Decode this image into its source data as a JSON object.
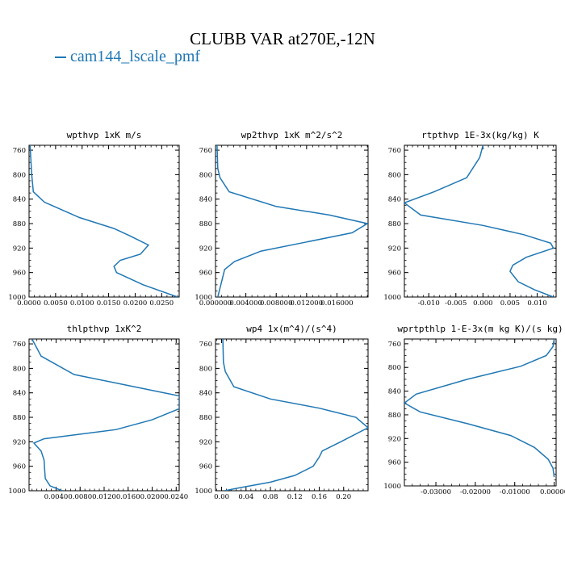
{
  "title": "CLUBB VAR at270E,-12N",
  "legend": {
    "label": "cam144_lscale_pmf"
  },
  "colors": {
    "series": "#1f77b4",
    "axes": "#000000"
  },
  "chart_data": [
    {
      "type": "line",
      "title": "wpthvp  1xK m/s",
      "xlim": [
        0,
        0.0283
      ],
      "ylim": [
        1000,
        752
      ],
      "xticks": [
        0,
        0.005,
        0.01,
        0.015,
        0.02,
        0.025
      ],
      "xtick_labels": [
        "0.0000",
        "0.0050",
        "0.0100",
        "0.0150",
        "0.0200",
        "0.0250"
      ],
      "yticks": [
        760,
        800,
        840,
        880,
        920,
        960,
        1000
      ],
      "ytick_labels": [
        "760",
        "800",
        "840",
        "880",
        "920",
        "960",
        "1000"
      ],
      "series": [
        {
          "x": [
            0.0002,
            0.0003,
            0.0005,
            0.0008,
            0.0029,
            0.0095,
            0.016,
            0.019,
            0.0225,
            0.021,
            0.0172,
            0.016,
            0.0165,
            0.0215,
            0.028
          ],
          "y": [
            752,
            770,
            800,
            828,
            845,
            870,
            888,
            900,
            915,
            930,
            940,
            950,
            960,
            980,
            1000
          ]
        }
      ]
    },
    {
      "type": "line",
      "title": "wp2thvp  1xK m^2/s^2",
      "xlim": [
        0,
        0.0201
      ],
      "ylim": [
        1000,
        752
      ],
      "xticks": [
        0,
        0.004,
        0.008,
        0.012,
        0.016
      ],
      "xtick_labels": [
        "0.000000",
        "0.004000",
        "0.008000",
        "0.012000",
        "0.016000"
      ],
      "yticks": [
        760,
        800,
        840,
        880,
        920,
        960,
        1000
      ],
      "ytick_labels": [
        "760",
        "800",
        "840",
        "880",
        "920",
        "960",
        "1000"
      ],
      "series": [
        {
          "x": [
            0.0002,
            0.0003,
            0.0006,
            0.0018,
            0.008,
            0.015,
            0.02,
            0.018,
            0.012,
            0.006,
            0.0025,
            0.0012,
            0.0007,
            0.0003
          ],
          "y": [
            752,
            790,
            805,
            828,
            852,
            866,
            880,
            895,
            910,
            925,
            942,
            955,
            980,
            1000
          ]
        }
      ]
    },
    {
      "type": "line",
      "title": "rtpthvp  1E-3x(kg/kg) K",
      "xlim": [
        -0.0145,
        0.0135
      ],
      "ylim": [
        1000,
        752
      ],
      "xticks": [
        -0.01,
        -0.005,
        0,
        0.005,
        0.01
      ],
      "xtick_labels": [
        "-0.010",
        "-0.005",
        "0.000",
        "0.005",
        "0.010"
      ],
      "yticks": [
        760,
        800,
        840,
        880,
        920,
        960,
        1000
      ],
      "ytick_labels": [
        "760",
        "800",
        "840",
        "880",
        "920",
        "960",
        "1000"
      ],
      "series": [
        {
          "x": [
            0.0,
            -0.0006,
            -0.003,
            -0.009,
            -0.0145,
            -0.0115,
            0.0,
            0.0075,
            0.0125,
            0.013,
            0.008,
            0.0055,
            0.005,
            0.0065,
            0.0095,
            0.013
          ],
          "y": [
            752,
            772,
            805,
            828,
            846,
            866,
            883,
            898,
            912,
            920,
            935,
            948,
            958,
            975,
            988,
            1000
          ]
        }
      ]
    },
    {
      "type": "line",
      "title": "thlpthvp  1xK^2",
      "xlim": [
        -0.0005,
        0.0245
      ],
      "ylim": [
        1000,
        752
      ],
      "xticks": [
        0.004,
        0.008,
        0.012,
        0.016,
        0.02,
        0.024
      ],
      "xtick_labels": [
        "0.0040",
        "0.0080",
        "0.0120",
        "0.0160",
        "0.0200",
        "0.0240"
      ],
      "yticks": [
        760,
        800,
        840,
        880,
        920,
        960,
        1000
      ],
      "ytick_labels": [
        "760",
        "800",
        "840",
        "880",
        "920",
        "960",
        "1000"
      ],
      "series": [
        {
          "x": [
            0.0,
            0.0015,
            0.007,
            0.016,
            0.0245,
            0.0245,
            0.02,
            0.014,
            0.002,
            0.0003,
            0.0015,
            0.002,
            0.0021,
            0.0022,
            0.003,
            0.005
          ],
          "y": [
            752,
            780,
            810,
            828,
            845,
            866,
            884,
            900,
            915,
            922,
            935,
            950,
            965,
            980,
            992,
            1000
          ]
        }
      ]
    },
    {
      "type": "line",
      "title": "wp4  1x(m^4)/(s^4)",
      "xlim": [
        -0.01,
        0.24
      ],
      "ylim": [
        1000,
        752
      ],
      "xticks": [
        0,
        0.04,
        0.08,
        0.12,
        0.16,
        0.2
      ],
      "xtick_labels": [
        "0.00",
        "0.04",
        "0.08",
        "0.12",
        "0.16",
        "0.20"
      ],
      "yticks": [
        760,
        800,
        840,
        880,
        920,
        960,
        1000
      ],
      "ytick_labels": [
        "760",
        "800",
        "840",
        "880",
        "920",
        "960",
        "1000"
      ],
      "series": [
        {
          "x": [
            0.002,
            0.003,
            0.006,
            0.02,
            0.08,
            0.16,
            0.22,
            0.24,
            0.195,
            0.165,
            0.16,
            0.15,
            0.12,
            0.08,
            0.03,
            0.005
          ],
          "y": [
            752,
            790,
            805,
            830,
            850,
            865,
            880,
            897,
            920,
            935,
            945,
            960,
            975,
            986,
            995,
            1000
          ]
        }
      ]
    },
    {
      "type": "line",
      "title": "wprtpthlp  1-E-3x(m kg K)/(s kg)",
      "xlim": [
        -0.038,
        0.0005
      ],
      "ylim": [
        1000,
        752
      ],
      "xticks": [
        -0.03,
        -0.02,
        -0.01,
        0
      ],
      "xtick_labels": [
        "-0.03000",
        "-0.02000",
        "-0.01000",
        "0.00000"
      ],
      "yticks": [
        760,
        800,
        840,
        880,
        920,
        960,
        1000
      ],
      "ytick_labels": [
        "760",
        "800",
        "840",
        "880",
        "920",
        "960",
        "1000"
      ],
      "series": [
        {
          "x": [
            0.0,
            -0.0003,
            -0.002,
            -0.0085,
            -0.022,
            -0.035,
            -0.038,
            -0.034,
            -0.022,
            -0.011,
            -0.005,
            -0.0015,
            -0.0003,
            0.0
          ],
          "y": [
            752,
            765,
            780,
            798,
            820,
            845,
            860,
            875,
            895,
            915,
            935,
            955,
            970,
            985
          ]
        }
      ]
    }
  ]
}
